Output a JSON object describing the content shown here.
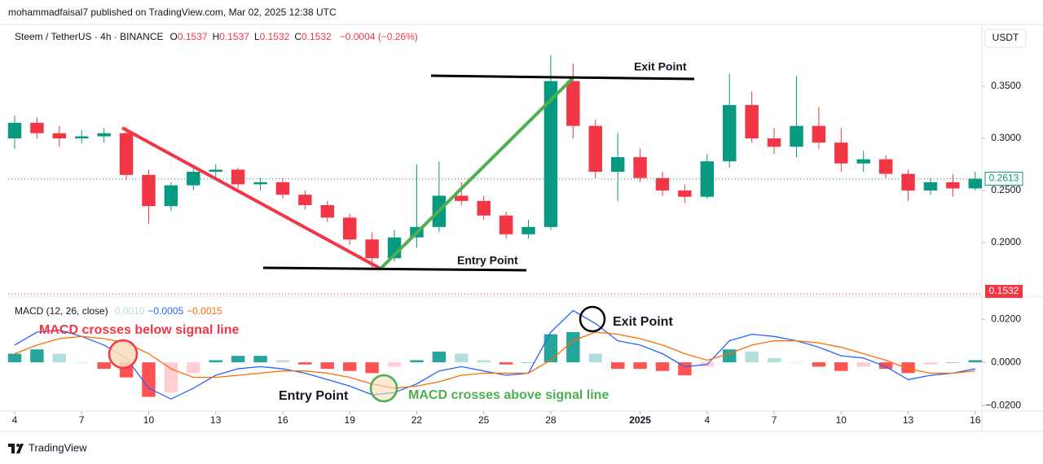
{
  "header": {
    "published": "mohammadfaisal7 published on TradingView.com, Mar 02, 2025 12:38 UTC"
  },
  "footer": {
    "brand": "TradingView"
  },
  "chart_data": [
    {
      "type": "candlestick",
      "legend": {
        "symbol": "Steem / TetherUS · 4h · BINANCE",
        "ohlc": [
          {
            "key": "O",
            "value": "0.1537"
          },
          {
            "key": "H",
            "value": "0.1537"
          },
          {
            "key": "L",
            "value": "0.1532"
          },
          {
            "key": "C",
            "value": "0.1532"
          }
        ],
        "change": "−0.0004 (−0.26%)"
      },
      "currency": "USDT",
      "up_color": "#089981",
      "down_color": "#f23645",
      "x": [
        0,
        1,
        2,
        3,
        4,
        5,
        6,
        7,
        8,
        9,
        10,
        11,
        12,
        13,
        14,
        15,
        16,
        17,
        18,
        19,
        20,
        21,
        22,
        23,
        24,
        25,
        26,
        27,
        28,
        29,
        30,
        31,
        32,
        33,
        34,
        35,
        36,
        37,
        38,
        39,
        40,
        41,
        42,
        43
      ],
      "open": [
        0.3,
        0.315,
        0.305,
        0.3,
        0.302,
        0.305,
        0.265,
        0.235,
        0.255,
        0.268,
        0.27,
        0.256,
        0.258,
        0.246,
        0.236,
        0.224,
        0.203,
        0.185,
        0.205,
        0.215,
        0.245,
        0.24,
        0.226,
        0.208,
        0.215,
        0.355,
        0.312,
        0.268,
        0.282,
        0.262,
        0.25,
        0.244,
        0.278,
        0.332,
        0.3,
        0.292,
        0.312,
        0.296,
        0.276,
        0.28,
        0.266,
        0.25,
        0.258,
        0.252
      ],
      "high": [
        0.322,
        0.32,
        0.312,
        0.308,
        0.31,
        0.311,
        0.27,
        0.258,
        0.272,
        0.275,
        0.272,
        0.262,
        0.262,
        0.25,
        0.24,
        0.228,
        0.21,
        0.212,
        0.275,
        0.278,
        0.258,
        0.245,
        0.23,
        0.222,
        0.38,
        0.372,
        0.318,
        0.305,
        0.29,
        0.268,
        0.256,
        0.285,
        0.362,
        0.345,
        0.31,
        0.36,
        0.33,
        0.31,
        0.288,
        0.284,
        0.27,
        0.262,
        0.266,
        0.268
      ],
      "low": [
        0.29,
        0.3,
        0.292,
        0.295,
        0.296,
        0.26,
        0.218,
        0.23,
        0.25,
        0.262,
        0.252,
        0.25,
        0.242,
        0.232,
        0.22,
        0.198,
        0.176,
        0.182,
        0.195,
        0.21,
        0.236,
        0.222,
        0.204,
        0.204,
        0.212,
        0.3,
        0.262,
        0.24,
        0.258,
        0.245,
        0.238,
        0.242,
        0.272,
        0.296,
        0.285,
        0.282,
        0.29,
        0.268,
        0.268,
        0.262,
        0.24,
        0.246,
        0.244,
        0.25
      ],
      "close": [
        0.315,
        0.305,
        0.3,
        0.302,
        0.305,
        0.265,
        0.235,
        0.255,
        0.268,
        0.27,
        0.256,
        0.258,
        0.246,
        0.236,
        0.224,
        0.203,
        0.185,
        0.205,
        0.215,
        0.245,
        0.24,
        0.226,
        0.208,
        0.215,
        0.355,
        0.312,
        0.268,
        0.282,
        0.262,
        0.25,
        0.244,
        0.278,
        0.332,
        0.3,
        0.292,
        0.312,
        0.296,
        0.276,
        0.28,
        0.266,
        0.25,
        0.258,
        0.252,
        0.2613
      ],
      "price_line": {
        "value": 0.1532,
        "color": "#f23645"
      },
      "xlim": [
        -0.292,
        43.3
      ],
      "ylim": [
        0.1516,
        0.4094
      ],
      "yticks": [
        {
          "value": 0.2,
          "label": "0.2000"
        },
        {
          "value": 0.25,
          "label": "0.2500"
        },
        {
          "value": 0.3,
          "label": "0.3000"
        },
        {
          "value": 0.35,
          "label": "0.3500"
        }
      ],
      "annotations": [
        "Exit Point",
        "Entry Point"
      ]
    },
    {
      "type": "macd",
      "legend": {
        "title": "MACD (12, 26, close)",
        "values": [
          {
            "text": "0.0010",
            "color": "#b2dfdb"
          },
          {
            "text": "−0.0005",
            "color": "#2962ff"
          },
          {
            "text": "−0.0015",
            "color": "#ff6d00"
          }
        ]
      },
      "x": [
        0,
        1,
        2,
        3,
        4,
        5,
        6,
        7,
        8,
        9,
        10,
        11,
        12,
        13,
        14,
        15,
        16,
        17,
        18,
        19,
        20,
        21,
        22,
        23,
        24,
        25,
        26,
        27,
        28,
        29,
        30,
        31,
        32,
        33,
        34,
        35,
        36,
        37,
        38,
        39,
        40,
        41,
        42,
        43
      ],
      "histogram": [
        0.004,
        0.006,
        0.004,
        0,
        -0.003,
        -0.007,
        -0.016,
        -0.014,
        -0.005,
        0.001,
        0.003,
        0.003,
        0.001,
        -0.001,
        -0.003,
        -0.004,
        -0.005,
        -0.002,
        0.001,
        0.005,
        0.004,
        0.001,
        -0.001,
        0,
        0.013,
        0.014,
        0.004,
        -0.003,
        -0.003,
        -0.004,
        -0.006,
        -0.002,
        0.006,
        0.005,
        0.002,
        0,
        -0.002,
        -0.004,
        -0.002,
        -0.003,
        -0.005,
        -0.001,
        0,
        0.001
      ],
      "series": [
        {
          "name": "MACD",
          "color": "#2962ff",
          "values": [
            0.008,
            0.014,
            0.015,
            0.012,
            0.008,
            0.002,
            -0.012,
            -0.017,
            -0.012,
            -0.006,
            -0.003,
            -0.002,
            -0.003,
            -0.005,
            -0.008,
            -0.011,
            -0.015,
            -0.014,
            -0.01,
            -0.004,
            -0.002,
            -0.004,
            -0.006,
            -0.005,
            0.014,
            0.024,
            0.018,
            0.01,
            0.008,
            0.004,
            -0.002,
            -0.001,
            0.01,
            0.013,
            0.012,
            0.01,
            0.007,
            0.003,
            0.002,
            -0.002,
            -0.008,
            -0.006,
            -0.005,
            -0.003
          ]
        },
        {
          "name": "Signal",
          "color": "#ff6d00",
          "values": [
            0.004,
            0.008,
            0.011,
            0.012,
            0.011,
            0.009,
            0.004,
            -0.003,
            -0.007,
            -0.007,
            -0.006,
            -0.005,
            -0.004,
            -0.004,
            -0.005,
            -0.007,
            -0.01,
            -0.012,
            -0.011,
            -0.009,
            -0.006,
            -0.005,
            -0.005,
            -0.005,
            0.001,
            0.01,
            0.014,
            0.013,
            0.011,
            0.008,
            0.004,
            0.001,
            0.004,
            0.008,
            0.01,
            0.01,
            0.009,
            0.007,
            0.004,
            0.001,
            -0.003,
            -0.005,
            -0.005,
            -0.004
          ]
        }
      ],
      "xlim": [
        -0.292,
        43.3
      ],
      "ylim": [
        -0.0226,
        0.0291
      ],
      "yticks": [
        {
          "value": -0.02,
          "label": "−0.0200"
        },
        {
          "value": 0,
          "label": "0.0000"
        },
        {
          "value": 0.02,
          "label": "0.0200"
        }
      ],
      "xticks": [
        {
          "value": 0,
          "label": "4"
        },
        {
          "value": 3,
          "label": "7"
        },
        {
          "value": 6,
          "label": "10"
        },
        {
          "value": 9,
          "label": "13"
        },
        {
          "value": 12,
          "label": "16"
        },
        {
          "value": 15,
          "label": "19"
        },
        {
          "value": 18,
          "label": "22"
        },
        {
          "value": 21,
          "label": "25"
        },
        {
          "value": 24,
          "label": "28"
        },
        {
          "value": 28,
          "label": "2025"
        },
        {
          "value": 31,
          "label": "4"
        },
        {
          "value": 34,
          "label": "7"
        },
        {
          "value": 37,
          "label": "10"
        },
        {
          "value": 40,
          "label": "13"
        },
        {
          "value": 43,
          "label": "16"
        }
      ],
      "annotations": [
        "MACD crosses below signal line",
        "Exit Point",
        "Entry Point",
        "MACD crosses above signal line"
      ]
    }
  ]
}
